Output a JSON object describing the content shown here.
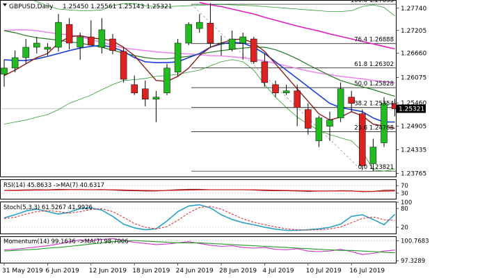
{
  "header": {
    "symbol": "GBPUSD,Daily",
    "ohlc": "1.25450 1.25561 1.25143 1.25321"
  },
  "colors": {
    "bull": "#22bb22",
    "bear": "#dd2222",
    "wick": "#000000",
    "ma_fast": "#8b1a1a",
    "ma_blue": "#1a3fd6",
    "ma_green": "#1f7a1f",
    "bb": "#2e9e2e",
    "ma_magenta": "#e020c0",
    "ma_pink": "#ee88ee",
    "fib": "#000000",
    "last_price_bg": "#000000",
    "osc_blue": "#2aa0c8",
    "osc_red": "#dd2222",
    "osc_magenta": "#cc33cc",
    "osc_green": "#1f9a1f"
  },
  "chart_data": [
    {
      "type": "candlestick",
      "title": "GBPUSD,Daily",
      "ylim": [
        1.2369,
        1.2792
      ],
      "y_ticks": [
        "1.27740",
        "1.27205",
        "1.26660",
        "1.26075",
        "1.25460",
        "1.24905",
        "1.24335",
        "1.23765"
      ],
      "y_tick_values": [
        1.2774,
        1.27205,
        1.2666,
        1.26075,
        1.2546,
        1.24905,
        1.24335,
        1.23765
      ],
      "last_price": "1.25321",
      "last_price_value": 1.25321,
      "x_ticks": [
        "31 May 2019",
        "6 Jun 2019",
        "12 Jun 2019",
        "18 Jun 2019",
        "24 Jun 2019",
        "28 Jun 2019",
        "4 Jul 2019",
        "10 Jul 2019",
        "16 Jul 2019"
      ],
      "x_tick_index": [
        0,
        4,
        8,
        12,
        16,
        20,
        24,
        28,
        32
      ],
      "candles": [
        {
          "o": 1.2615,
          "h": 1.265,
          "l": 1.2585,
          "c": 1.263
        },
        {
          "o": 1.263,
          "h": 1.2672,
          "l": 1.262,
          "c": 1.2655
        },
        {
          "o": 1.2655,
          "h": 1.27,
          "l": 1.264,
          "c": 1.268
        },
        {
          "o": 1.268,
          "h": 1.2705,
          "l": 1.2665,
          "c": 1.269
        },
        {
          "o": 1.2675,
          "h": 1.269,
          "l": 1.266,
          "c": 1.268
        },
        {
          "o": 1.268,
          "h": 1.276,
          "l": 1.267,
          "c": 1.274
        },
        {
          "o": 1.2735,
          "h": 1.275,
          "l": 1.2675,
          "c": 1.269
        },
        {
          "o": 1.268,
          "h": 1.2715,
          "l": 1.265,
          "c": 1.2705
        },
        {
          "o": 1.2705,
          "h": 1.2745,
          "l": 1.2685,
          "c": 1.2685
        },
        {
          "o": 1.268,
          "h": 1.275,
          "l": 1.2665,
          "c": 1.2722
        },
        {
          "o": 1.27,
          "h": 1.2712,
          "l": 1.2663,
          "c": 1.2672
        },
        {
          "o": 1.267,
          "h": 1.268,
          "l": 1.2595,
          "c": 1.2603
        },
        {
          "o": 1.259,
          "h": 1.2612,
          "l": 1.2565,
          "c": 1.257
        },
        {
          "o": 1.258,
          "h": 1.26,
          "l": 1.2538,
          "c": 1.2555
        },
        {
          "o": 1.2555,
          "h": 1.2575,
          "l": 1.25,
          "c": 1.256
        },
        {
          "o": 1.257,
          "h": 1.264,
          "l": 1.2565,
          "c": 1.263
        },
        {
          "o": 1.262,
          "h": 1.27,
          "l": 1.261,
          "c": 1.269
        },
        {
          "o": 1.269,
          "h": 1.274,
          "l": 1.2685,
          "c": 1.2735
        },
        {
          "o": 1.2725,
          "h": 1.276,
          "l": 1.2715,
          "c": 1.274
        },
        {
          "o": 1.2738,
          "h": 1.2786,
          "l": 1.268,
          "c": 1.269
        },
        {
          "o": 1.269,
          "h": 1.2708,
          "l": 1.266,
          "c": 1.269
        },
        {
          "o": 1.2675,
          "h": 1.272,
          "l": 1.267,
          "c": 1.27
        },
        {
          "o": 1.269,
          "h": 1.2715,
          "l": 1.265,
          "c": 1.2705
        },
        {
          "o": 1.27,
          "h": 1.2705,
          "l": 1.264,
          "c": 1.2645
        },
        {
          "o": 1.2645,
          "h": 1.2665,
          "l": 1.2585,
          "c": 1.2595
        },
        {
          "o": 1.259,
          "h": 1.26,
          "l": 1.256,
          "c": 1.257
        },
        {
          "o": 1.257,
          "h": 1.259,
          "l": 1.2565,
          "c": 1.2575
        },
        {
          "o": 1.2575,
          "h": 1.259,
          "l": 1.249,
          "c": 1.2535
        },
        {
          "o": 1.253,
          "h": 1.2545,
          "l": 1.247,
          "c": 1.2485
        },
        {
          "o": 1.2455,
          "h": 1.2515,
          "l": 1.244,
          "c": 1.251
        },
        {
          "o": 1.249,
          "h": 1.2525,
          "l": 1.2455,
          "c": 1.2505
        },
        {
          "o": 1.251,
          "h": 1.2595,
          "l": 1.25,
          "c": 1.258
        },
        {
          "o": 1.256,
          "h": 1.2575,
          "l": 1.2525,
          "c": 1.2545
        },
        {
          "o": 1.252,
          "h": 1.253,
          "l": 1.2385,
          "c": 1.2395
        },
        {
          "o": 1.24,
          "h": 1.246,
          "l": 1.2382,
          "c": 1.244
        },
        {
          "o": 1.245,
          "h": 1.256,
          "l": 1.244,
          "c": 1.2545
        },
        {
          "o": 1.2545,
          "h": 1.2556,
          "l": 1.2514,
          "c": 1.2532
        }
      ],
      "fib_levels": [
        {
          "label": "100.0 1.27835",
          "value": 1.27835
        },
        {
          "label": "76.4 1.26888",
          "value": 1.26888
        },
        {
          "label": "61.8 1.26302",
          "value": 1.26302
        },
        {
          "label": "50.0 1.25828",
          "value": 1.25828
        },
        {
          "label": "38.2 1.25354",
          "value": 1.25354
        },
        {
          "label": "23.6 1.24768",
          "value": 1.24768
        },
        {
          "label": "0.0 1.23821",
          "value": 1.23821
        }
      ],
      "series": [
        {
          "key": "ma_fast",
          "values": [
            1.2612,
            1.2625,
            1.264,
            1.2655,
            1.2665,
            1.269,
            1.2705,
            1.2708,
            1.2702,
            1.27,
            1.2695,
            1.268,
            1.266,
            1.263,
            1.26,
            1.2598,
            1.261,
            1.263,
            1.266,
            1.268,
            1.269,
            1.2698,
            1.27,
            1.269,
            1.267,
            1.264,
            1.261,
            1.258,
            1.255,
            1.252,
            1.2505,
            1.2512,
            1.2525,
            1.2515,
            1.2495,
            1.249,
            1.2485
          ]
        },
        {
          "key": "ma_blue",
          "values": [
            1.265,
            1.2648,
            1.2648,
            1.2652,
            1.2658,
            1.2665,
            1.2672,
            1.2678,
            1.2682,
            1.2685,
            1.268,
            1.267,
            1.2655,
            1.2645,
            1.2643,
            1.2643,
            1.2645,
            1.2655,
            1.2665,
            1.268,
            1.2688,
            1.2692,
            1.269,
            1.268,
            1.2665,
            1.2645,
            1.2625,
            1.2605,
            1.2585,
            1.2565,
            1.2545,
            1.2535,
            1.253,
            1.2525,
            1.251,
            1.25,
            1.25
          ]
        },
        {
          "key": "ma_green",
          "values": [
            1.272,
            1.2715,
            1.2708,
            1.2703,
            1.27,
            1.2697,
            1.2693,
            1.269,
            1.2685,
            1.268,
            1.2673,
            1.2666,
            1.266,
            1.2655,
            1.2652,
            1.2652,
            1.2655,
            1.2658,
            1.2664,
            1.2668,
            1.2672,
            1.2675,
            1.2678,
            1.268,
            1.268,
            1.2674,
            1.2664,
            1.2652,
            1.2638,
            1.2625,
            1.2612,
            1.26,
            1.2592,
            1.2585,
            1.2578,
            1.257,
            1.2562
          ]
        },
        {
          "key": "ma_pink",
          "values": [
            1.272,
            1.2722,
            1.2722,
            1.272,
            1.2716,
            1.2712,
            1.271,
            1.2705,
            1.2698,
            1.2692,
            1.2685,
            1.2678,
            1.2675,
            1.2672,
            1.2669,
            1.2667,
            1.2665,
            1.2664,
            1.2662,
            1.266,
            1.2659,
            1.2657,
            1.2655,
            1.2651,
            1.2647,
            1.2641,
            1.2635,
            1.2629,
            1.2623,
            1.2618,
            1.2614,
            1.261,
            1.2607,
            1.2604,
            1.26,
            1.2597,
            1.2594
          ]
        },
        {
          "key": "ma_magenta",
          "values": [
            null,
            null,
            null,
            null,
            null,
            null,
            null,
            null,
            null,
            null,
            null,
            null,
            null,
            null,
            null,
            null,
            null,
            null,
            1.2788,
            1.2782,
            1.2778,
            1.2772,
            1.2766,
            1.276,
            1.2752,
            1.2745,
            1.2738,
            1.2731,
            1.2725,
            1.2719,
            1.2712,
            1.2706,
            1.27,
            1.2694,
            1.2688,
            1.2682,
            1.2676
          ]
        },
        {
          "key": "bb_upper",
          "values": [
            1.281,
            1.2805,
            1.28,
            1.279,
            1.278,
            1.2772,
            1.277,
            1.2768,
            1.2768,
            1.277,
            1.278,
            1.2785,
            1.2785,
            1.278,
            1.2778,
            1.2778,
            1.2779,
            1.278,
            1.2781,
            1.2782,
            1.2783,
            1.2782,
            1.2781,
            1.278,
            1.2778,
            1.2776,
            1.2774,
            1.2772,
            1.277,
            1.2768,
            1.2766,
            1.2766,
            1.2768,
            1.2778,
            1.2782,
            1.2776,
            1.2755
          ]
        },
        {
          "key": "bb_lower",
          "values": [
            1.2495,
            1.25,
            1.2505,
            1.2512,
            1.2518,
            1.253,
            1.2545,
            1.2555,
            1.2565,
            1.2578,
            1.259,
            1.26,
            1.2602,
            1.2605,
            1.261,
            1.2612,
            1.2615,
            1.262,
            1.2625,
            1.2635,
            1.2645,
            1.265,
            1.2645,
            1.2625,
            1.259,
            1.256,
            1.2535,
            1.2512,
            1.2495,
            1.248,
            1.247,
            1.2462,
            1.2455,
            1.243,
            1.2385,
            1.2382,
            1.2387
          ]
        }
      ]
    },
    {
      "type": "line",
      "title": "RSI(14) 45.8633 ->MA(7) 40.6317",
      "ylim": [
        0,
        100
      ],
      "y_ticks": [
        "70",
        "30"
      ],
      "y_tick_values": [
        70,
        30
      ],
      "series": [
        {
          "key": "rsi",
          "values": [
            45,
            46,
            47,
            48,
            47,
            50,
            49,
            49,
            48,
            49,
            47,
            44,
            43,
            42,
            42,
            45,
            48,
            50,
            50,
            48,
            48,
            48,
            48,
            47,
            44,
            43,
            43,
            42,
            40,
            41,
            41,
            43,
            42,
            38,
            39,
            45,
            45.86
          ]
        },
        {
          "key": "rsi_ma",
          "values": [
            44,
            44,
            45,
            46,
            46,
            47,
            48,
            48,
            48,
            48,
            48,
            47,
            46,
            45,
            44,
            44,
            45,
            46,
            47,
            48,
            48,
            48,
            48,
            48,
            47,
            46,
            45,
            44,
            43,
            42,
            41,
            41,
            41,
            40,
            40,
            40,
            40.63
          ]
        }
      ]
    },
    {
      "type": "line",
      "title": "Stoch(5,3,3) 61.5267 41.9926",
      "ylim": [
        0,
        100
      ],
      "y_ticks": [
        "100",
        "80",
        "20"
      ],
      "y_tick_values": [
        100,
        80,
        20
      ],
      "series": [
        {
          "key": "stoch_main",
          "values": [
            50,
            60,
            72,
            78,
            70,
            62,
            68,
            80,
            82,
            75,
            55,
            30,
            18,
            12,
            15,
            40,
            70,
            88,
            92,
            82,
            60,
            45,
            35,
            28,
            20,
            14,
            10,
            10,
            12,
            15,
            20,
            30,
            55,
            60,
            45,
            28,
            61.53
          ]
        },
        {
          "key": "stoch_signal",
          "values": [
            48,
            52,
            62,
            70,
            73,
            70,
            65,
            70,
            77,
            79,
            70,
            52,
            32,
            20,
            15,
            22,
            42,
            66,
            83,
            87,
            78,
            62,
            47,
            36,
            28,
            21,
            15,
            12,
            11,
            12,
            15,
            21,
            35,
            48,
            53,
            44,
            41.99
          ]
        }
      ]
    },
    {
      "type": "line",
      "title": "Momentum(14) 99.1636 ->MA(7) 98.7006",
      "ylim": [
        97.0,
        101.4
      ],
      "y_ticks": [
        "100.7683",
        "97.3289"
      ],
      "y_tick_values": [
        100.7683,
        97.3289
      ],
      "series": [
        {
          "key": "momentum",
          "values": [
            99.2,
            99.3,
            99.5,
            99.7,
            99.9,
            100.2,
            100.6,
            100.9,
            100.8,
            101.0,
            101.1,
            100.8,
            100.5,
            100.3,
            100.1,
            100.2,
            100.4,
            100.6,
            100.3,
            100.0,
            99.8,
            99.9,
            99.6,
            99.5,
            99.6,
            99.3,
            99.2,
            99.4,
            99.0,
            98.9,
            99.0,
            99.3,
            98.9,
            98.4,
            98.6,
            99.0,
            99.16
          ]
        },
        {
          "key": "momentum_ma",
          "values": [
            99.0,
            99.1,
            99.2,
            99.3,
            99.5,
            99.6,
            99.8,
            100.0,
            100.2,
            100.4,
            100.6,
            100.7,
            100.8,
            100.7,
            100.6,
            100.5,
            100.4,
            100.4,
            100.4,
            100.3,
            100.2,
            100.1,
            100.0,
            99.9,
            99.8,
            99.7,
            99.6,
            99.5,
            99.4,
            99.3,
            99.2,
            99.1,
            99.1,
            99.0,
            98.9,
            98.8,
            98.7
          ]
        }
      ]
    }
  ]
}
